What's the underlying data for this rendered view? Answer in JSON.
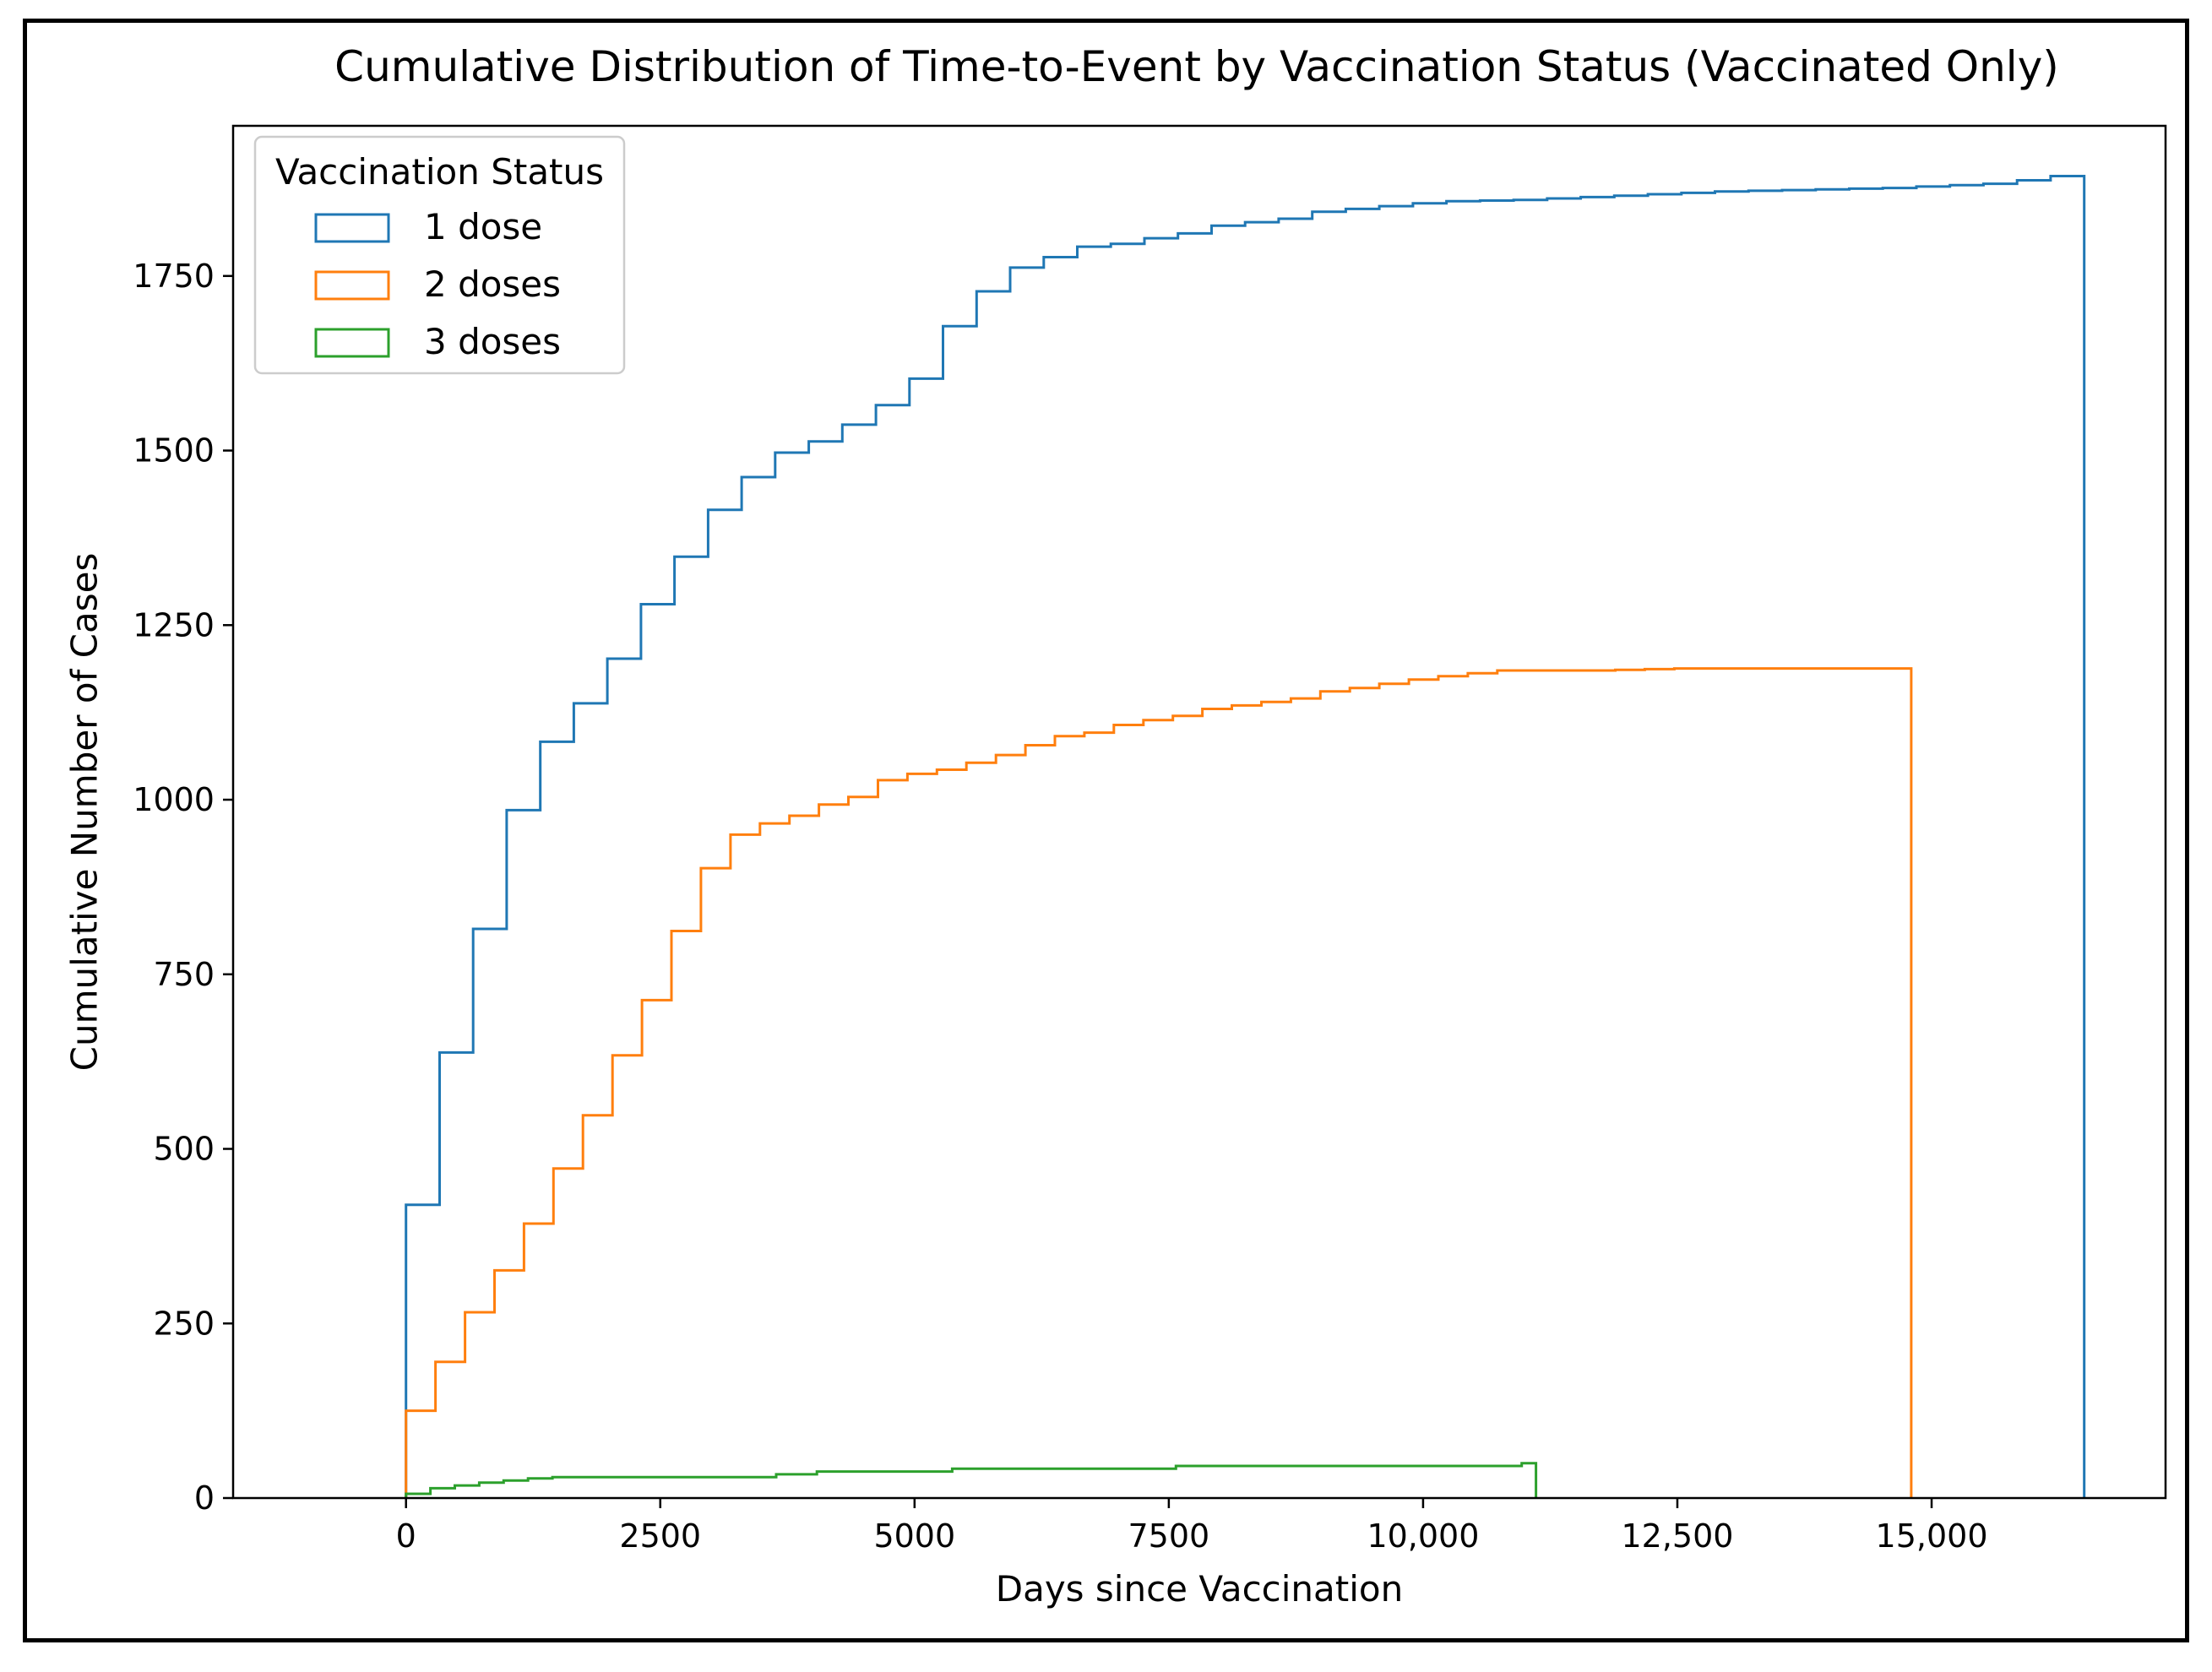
{
  "chart_data": {
    "type": "line",
    "step": "post",
    "title": "Cumulative Distribution of Time-to-Event by Vaccination Status (Vaccinated Only)",
    "xlabel": "Days since Vaccination",
    "ylabel": "Cumulative Number of Cases",
    "xlim": [
      -1700,
      17300
    ],
    "ylim": [
      0,
      1965
    ],
    "x_ticks": [
      0,
      2500,
      5000,
      7500,
      10000,
      12500,
      15000
    ],
    "x_tick_labels": [
      "0",
      "2500",
      "5000",
      "7500",
      "10,000",
      "12,500",
      "15,000"
    ],
    "y_ticks": [
      0,
      250,
      500,
      750,
      1000,
      1250,
      1500,
      1750
    ],
    "y_tick_labels": [
      "0",
      "250",
      "500",
      "750",
      "1000",
      "1250",
      "1500",
      "1750"
    ],
    "grid": false,
    "legend": {
      "title": "Vaccination Status",
      "position": "top-left"
    },
    "series": [
      {
        "name": "1 dose",
        "color": "#1f77b4",
        "drop_to_zero": true,
        "points": [
          [
            0,
            420
          ],
          [
            330,
            638
          ],
          [
            660,
            815
          ],
          [
            990,
            985
          ],
          [
            1320,
            1083
          ],
          [
            1650,
            1138
          ],
          [
            1980,
            1202
          ],
          [
            2310,
            1280
          ],
          [
            2640,
            1348
          ],
          [
            2970,
            1415
          ],
          [
            3300,
            1462
          ],
          [
            3630,
            1497
          ],
          [
            3960,
            1513
          ],
          [
            4290,
            1537
          ],
          [
            4620,
            1565
          ],
          [
            4950,
            1603
          ],
          [
            5280,
            1678
          ],
          [
            5610,
            1728
          ],
          [
            5940,
            1762
          ],
          [
            6270,
            1777
          ],
          [
            6600,
            1792
          ],
          [
            6930,
            1796
          ],
          [
            7260,
            1804
          ],
          [
            7590,
            1811
          ],
          [
            7920,
            1822
          ],
          [
            8250,
            1827
          ],
          [
            8580,
            1832
          ],
          [
            8910,
            1842
          ],
          [
            9240,
            1846
          ],
          [
            9570,
            1850
          ],
          [
            9900,
            1854
          ],
          [
            10230,
            1857
          ],
          [
            10560,
            1858
          ],
          [
            10890,
            1859
          ],
          [
            11220,
            1861
          ],
          [
            11550,
            1863
          ],
          [
            11880,
            1865
          ],
          [
            12210,
            1867
          ],
          [
            12540,
            1869
          ],
          [
            12870,
            1871
          ],
          [
            13200,
            1872
          ],
          [
            13530,
            1873
          ],
          [
            13860,
            1874
          ],
          [
            14190,
            1875
          ],
          [
            14520,
            1876
          ],
          [
            14850,
            1878
          ],
          [
            15180,
            1880
          ],
          [
            15510,
            1882
          ],
          [
            15840,
            1887
          ],
          [
            16170,
            1893
          ],
          [
            16500,
            1893
          ]
        ]
      },
      {
        "name": "2 doses",
        "color": "#ff7f0e",
        "drop_to_zero": true,
        "points": [
          [
            0,
            125
          ],
          [
            290,
            195
          ],
          [
            580,
            266
          ],
          [
            870,
            326
          ],
          [
            1160,
            393
          ],
          [
            1450,
            472
          ],
          [
            1740,
            548
          ],
          [
            2030,
            634
          ],
          [
            2320,
            713
          ],
          [
            2610,
            812
          ],
          [
            2900,
            902
          ],
          [
            3190,
            950
          ],
          [
            3480,
            966
          ],
          [
            3770,
            977
          ],
          [
            4060,
            993
          ],
          [
            4350,
            1004
          ],
          [
            4640,
            1028
          ],
          [
            4930,
            1037
          ],
          [
            5220,
            1043
          ],
          [
            5510,
            1053
          ],
          [
            5800,
            1064
          ],
          [
            6090,
            1078
          ],
          [
            6380,
            1091
          ],
          [
            6670,
            1096
          ],
          [
            6960,
            1107
          ],
          [
            7250,
            1114
          ],
          [
            7540,
            1120
          ],
          [
            7830,
            1130
          ],
          [
            8120,
            1135
          ],
          [
            8410,
            1140
          ],
          [
            8700,
            1145
          ],
          [
            8990,
            1155
          ],
          [
            9280,
            1160
          ],
          [
            9570,
            1166
          ],
          [
            9860,
            1172
          ],
          [
            10150,
            1177
          ],
          [
            10440,
            1181
          ],
          [
            10730,
            1185
          ],
          [
            11020,
            1185
          ],
          [
            11310,
            1185
          ],
          [
            11600,
            1185
          ],
          [
            11890,
            1186
          ],
          [
            12180,
            1187
          ],
          [
            12470,
            1188
          ],
          [
            14800,
            1188
          ]
        ]
      },
      {
        "name": "3 doses",
        "color": "#2ca02c",
        "drop_to_zero": true,
        "points": [
          [
            0,
            6
          ],
          [
            240,
            14
          ],
          [
            480,
            18
          ],
          [
            720,
            22
          ],
          [
            960,
            25
          ],
          [
            1200,
            28
          ],
          [
            1440,
            30
          ],
          [
            3640,
            34
          ],
          [
            4040,
            38
          ],
          [
            5370,
            42
          ],
          [
            7570,
            46
          ],
          [
            10970,
            50
          ],
          [
            11110,
            50
          ]
        ]
      }
    ]
  }
}
